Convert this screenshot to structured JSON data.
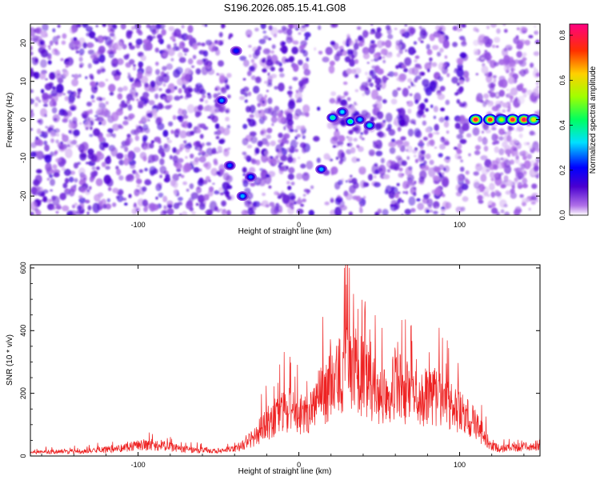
{
  "figure": {
    "title": "S196.2026.085.15.41.G08"
  },
  "chart_data": [
    {
      "type": "heatmap",
      "title": "S196.2026.085.15.41.G08",
      "xlabel": "Height of straight line (km)",
      "ylabel": "Frequency (Hz)",
      "xlim": [
        -167,
        150
      ],
      "ylim": [
        -25,
        25
      ],
      "x_ticks": [
        -100,
        0,
        100
      ],
      "y_ticks": [
        -20,
        -10,
        0,
        10,
        20
      ],
      "colorbar": {
        "label": "Normalized spectral amplitude",
        "range": [
          0,
          0.85
        ],
        "ticks": [
          0.0,
          0.2,
          0.4,
          0.6,
          0.8
        ],
        "colormap": [
          "#ffffff",
          "#8a2be2",
          "#2020ff",
          "#00ffff",
          "#00ff00",
          "#ffff00",
          "#ff8000",
          "#ff0000",
          "#ff00a0"
        ]
      },
      "background_noise_level": 0.05,
      "noise_free_bands_km": [
        [
          -42,
          -34
        ],
        [
          6,
          20
        ],
        [
          93,
          97
        ],
        [
          105,
          110
        ]
      ],
      "hotspots": [
        {
          "x": -48,
          "y": 5,
          "amplitude": 0.28
        },
        {
          "x": -43,
          "y": -12,
          "amplitude": 0.25
        },
        {
          "x": -39,
          "y": 18,
          "amplitude": 0.22
        },
        {
          "x": -35,
          "y": -20,
          "amplitude": 0.3
        },
        {
          "x": -30,
          "y": -15,
          "amplitude": 0.26
        },
        {
          "x": 14,
          "y": -13,
          "amplitude": 0.3
        },
        {
          "x": 21,
          "y": 0.5,
          "amplitude": 0.38
        },
        {
          "x": 27,
          "y": 2,
          "amplitude": 0.32
        },
        {
          "x": 32,
          "y": -0.5,
          "amplitude": 0.4
        },
        {
          "x": 38,
          "y": 0,
          "amplitude": 0.3
        },
        {
          "x": 44,
          "y": -1.5,
          "amplitude": 0.35
        },
        {
          "x": 110,
          "y": 0,
          "amplitude": 0.8
        },
        {
          "x": 119,
          "y": 0,
          "amplitude": 0.78
        },
        {
          "x": 126,
          "y": 0,
          "amplitude": 0.55
        },
        {
          "x": 133,
          "y": 0,
          "amplitude": 0.8
        },
        {
          "x": 140,
          "y": 0,
          "amplitude": 0.82
        },
        {
          "x": 146,
          "y": 0,
          "amplitude": 0.6
        }
      ]
    },
    {
      "type": "line",
      "xlabel": "Height of straight line (km)",
      "ylabel": "SNR (10 * v/v)",
      "xlim": [
        -167,
        150
      ],
      "ylim": [
        0,
        610
      ],
      "x_ticks": [
        -100,
        0,
        100
      ],
      "y_ticks": [
        0,
        200,
        400,
        600
      ],
      "color": "#ee2222",
      "series": [
        {
          "x": [
            -167,
            -150,
            -130,
            -110,
            -100,
            -90,
            -80,
            -70,
            -60,
            -50,
            -40,
            -30,
            -20,
            -10,
            0,
            10,
            20,
            25,
            30,
            35,
            40,
            45,
            50,
            55,
            60,
            65,
            70,
            75,
            80,
            85,
            90,
            95,
            100,
            105,
            110,
            115,
            120,
            125,
            130,
            140,
            150
          ],
          "values": [
            15,
            20,
            22,
            35,
            50,
            45,
            40,
            28,
            25,
            20,
            30,
            70,
            140,
            200,
            180,
            220,
            320,
            340,
            420,
            380,
            350,
            300,
            260,
            290,
            320,
            280,
            260,
            250,
            260,
            270,
            230,
            210,
            190,
            170,
            140,
            90,
            50,
            30,
            35,
            40,
            50
          ]
        }
      ]
    }
  ]
}
